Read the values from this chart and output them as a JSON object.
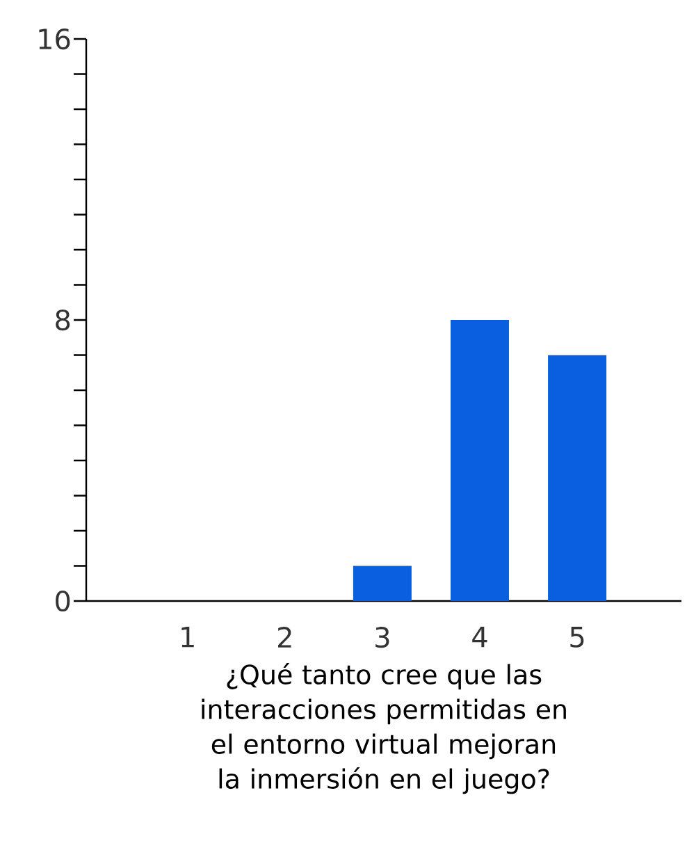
{
  "chart_data": {
    "type": "bar",
    "xlabel": "¿Qué tanto cree que las interacciones permitidas en el entorno virtual mejoran la inmersión en el juego?",
    "categories": [
      "1",
      "2",
      "3",
      "4",
      "5"
    ],
    "values": [
      0,
      0,
      1,
      8,
      7
    ],
    "color": "#0a5fe0",
    "ylim": [
      0,
      16
    ],
    "yticks": [
      0,
      {
        "value": 1,
        "label": null
      },
      {
        "value": 2,
        "label": null
      },
      {
        "value": 3,
        "label": null
      },
      {
        "value": 4,
        "label": null
      },
      {
        "value": 5,
        "label": null
      },
      {
        "value": 6,
        "label": null
      },
      {
        "value": 7,
        "label": null
      },
      8,
      {
        "value": 9,
        "label": null
      },
      {
        "value": 10,
        "label": null
      },
      {
        "value": 11,
        "label": null
      },
      {
        "value": 12,
        "label": null
      },
      {
        "value": 13,
        "label": null
      },
      {
        "value": 14,
        "label": null
      },
      {
        "value": 15,
        "label": null
      },
      16
    ]
  }
}
